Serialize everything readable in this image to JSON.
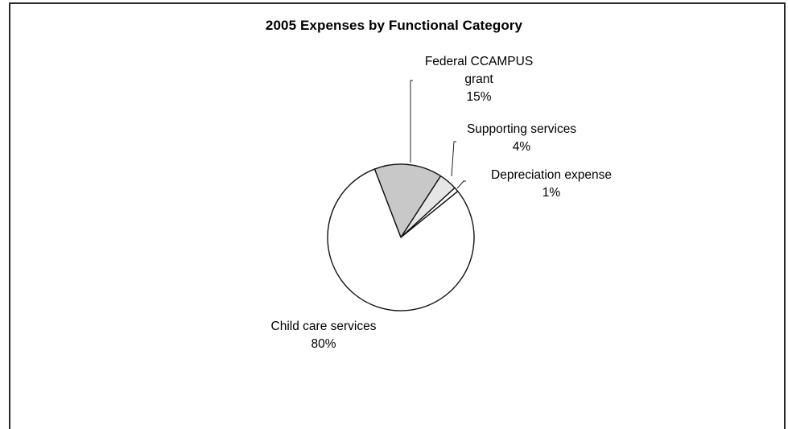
{
  "chart_data": {
    "type": "pie",
    "title": "2005 Expenses by Functional Category",
    "slices": [
      {
        "name": "Child care services",
        "value": 80,
        "label": "80%",
        "fill": "#ffffff"
      },
      {
        "name": "Federal CCAMPUS grant",
        "value": 15,
        "label": "15%",
        "fill": "#c8c8c8"
      },
      {
        "name": "Supporting services",
        "value": 4,
        "label": "4%",
        "fill": "#e6e6e6"
      },
      {
        "name": "Depreciation expense",
        "value": 1,
        "label": "1%",
        "fill": "#ffffff"
      }
    ],
    "label_lines": {
      "federal": [
        "Federal CCAMPUS",
        "grant"
      ]
    },
    "legend": "none"
  }
}
